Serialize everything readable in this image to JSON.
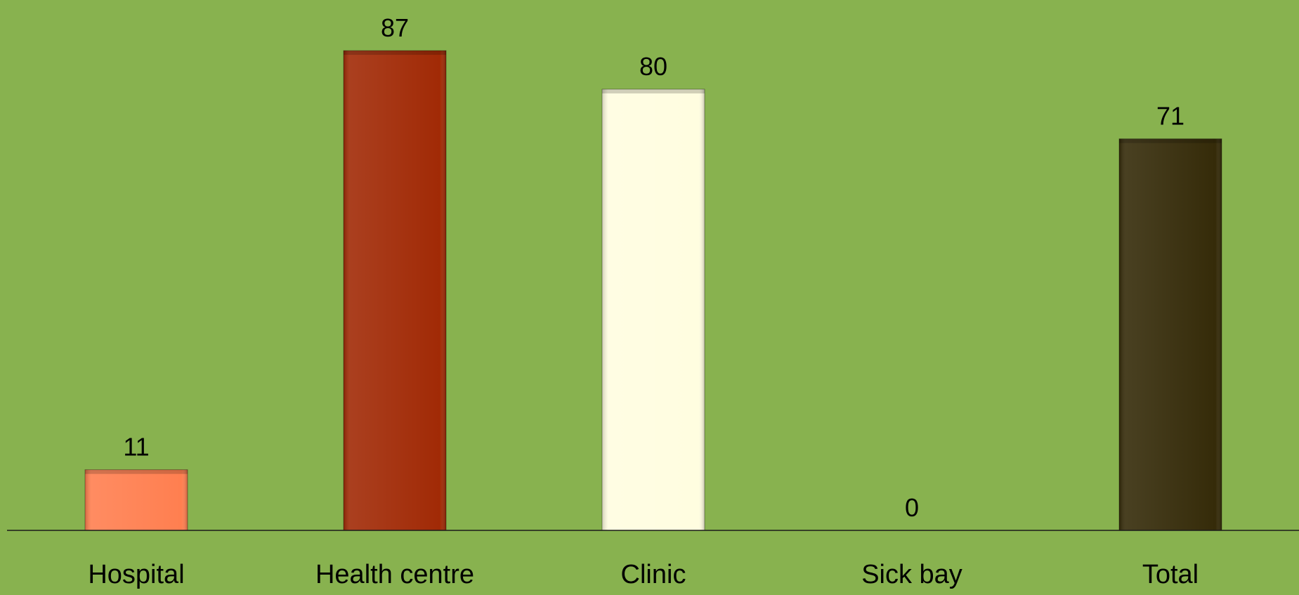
{
  "chart_data": {
    "type": "bar",
    "categories": [
      "Hospital",
      "Health centre",
      "Clinic",
      "Sick bay",
      "Total"
    ],
    "values": [
      11,
      87,
      80,
      0,
      71
    ],
    "data_labels": [
      "11",
      "87",
      "80",
      "0",
      "71"
    ],
    "colors": [
      "#ff7f50",
      "#a12a06",
      "#fffde0",
      "#88b24f",
      "#352b09"
    ],
    "background": "#88b24f",
    "ylim": [
      0,
      100
    ],
    "grid": false,
    "legend": "none"
  }
}
